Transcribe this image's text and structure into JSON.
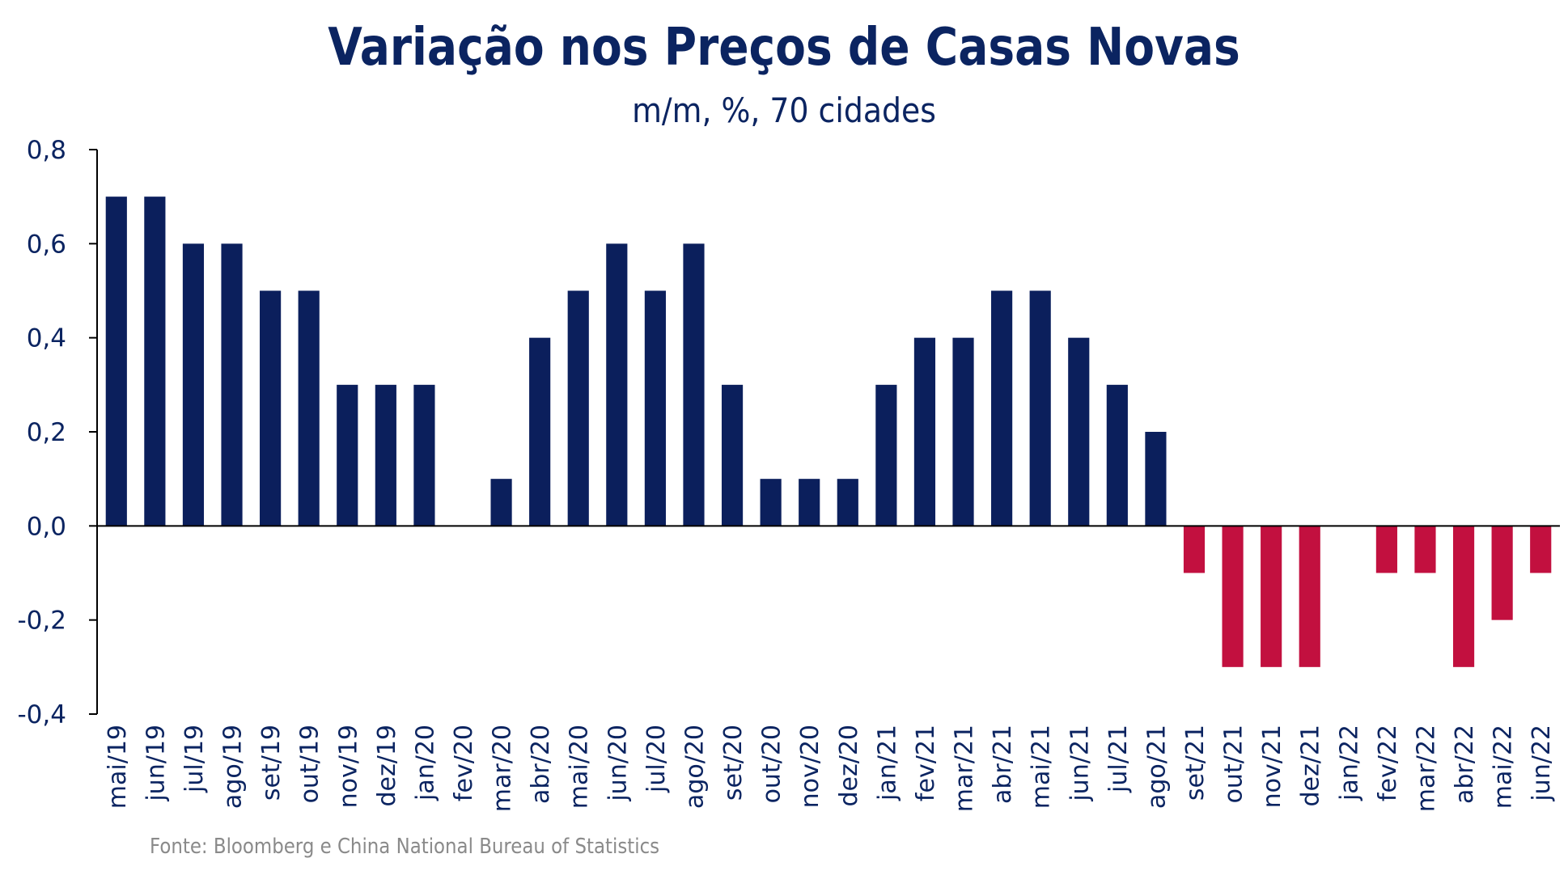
{
  "chart_data": {
    "type": "bar",
    "title": "Variação nos Preços de Casas Novas",
    "subtitle": "m/m, %, 70 cidades",
    "source": "Fonte: Bloomberg e China National Bureau of Statistics",
    "categories": [
      "mai/19",
      "jun/19",
      "jul/19",
      "ago/19",
      "set/19",
      "out/19",
      "nov/19",
      "dez/19",
      "jan/20",
      "fev/20",
      "mar/20",
      "abr/20",
      "mai/20",
      "jun/20",
      "jul/20",
      "ago/20",
      "set/20",
      "out/20",
      "nov/20",
      "dez/20",
      "jan/21",
      "fev/21",
      "mar/21",
      "abr/21",
      "mai/21",
      "jun/21",
      "jul/21",
      "ago/21",
      "set/21",
      "out/21",
      "nov/21",
      "dez/21",
      "jan/22",
      "fev/22",
      "mar/22",
      "abr/22",
      "mai/22",
      "jun/22"
    ],
    "values": [
      0.7,
      0.7,
      0.6,
      0.6,
      0.5,
      0.5,
      0.3,
      0.3,
      0.3,
      0,
      0.1,
      0.4,
      0.5,
      0.6,
      0.5,
      0.6,
      0.3,
      0.1,
      0.1,
      0.1,
      0.3,
      0.4,
      0.4,
      0.5,
      0.5,
      0.4,
      0.3,
      0.2,
      -0.1,
      -0.3,
      -0.3,
      -0.3,
      0,
      -0.1,
      -0.1,
      -0.3,
      -0.2,
      -0.1
    ],
    "yticks": [
      "0,8",
      "0,6",
      "0,4",
      "0,2",
      "0,0",
      "-0,2",
      "-0,4"
    ],
    "ytick_values": [
      0.8,
      0.6,
      0.4,
      0.2,
      0,
      -0.2,
      -0.4
    ],
    "ylim": [
      -0.4,
      0.8
    ],
    "grid": false,
    "colors": {
      "positive": "#0b1f5c",
      "negative": "#c2103f",
      "axis": "#000000",
      "text": "#0b2461"
    }
  }
}
